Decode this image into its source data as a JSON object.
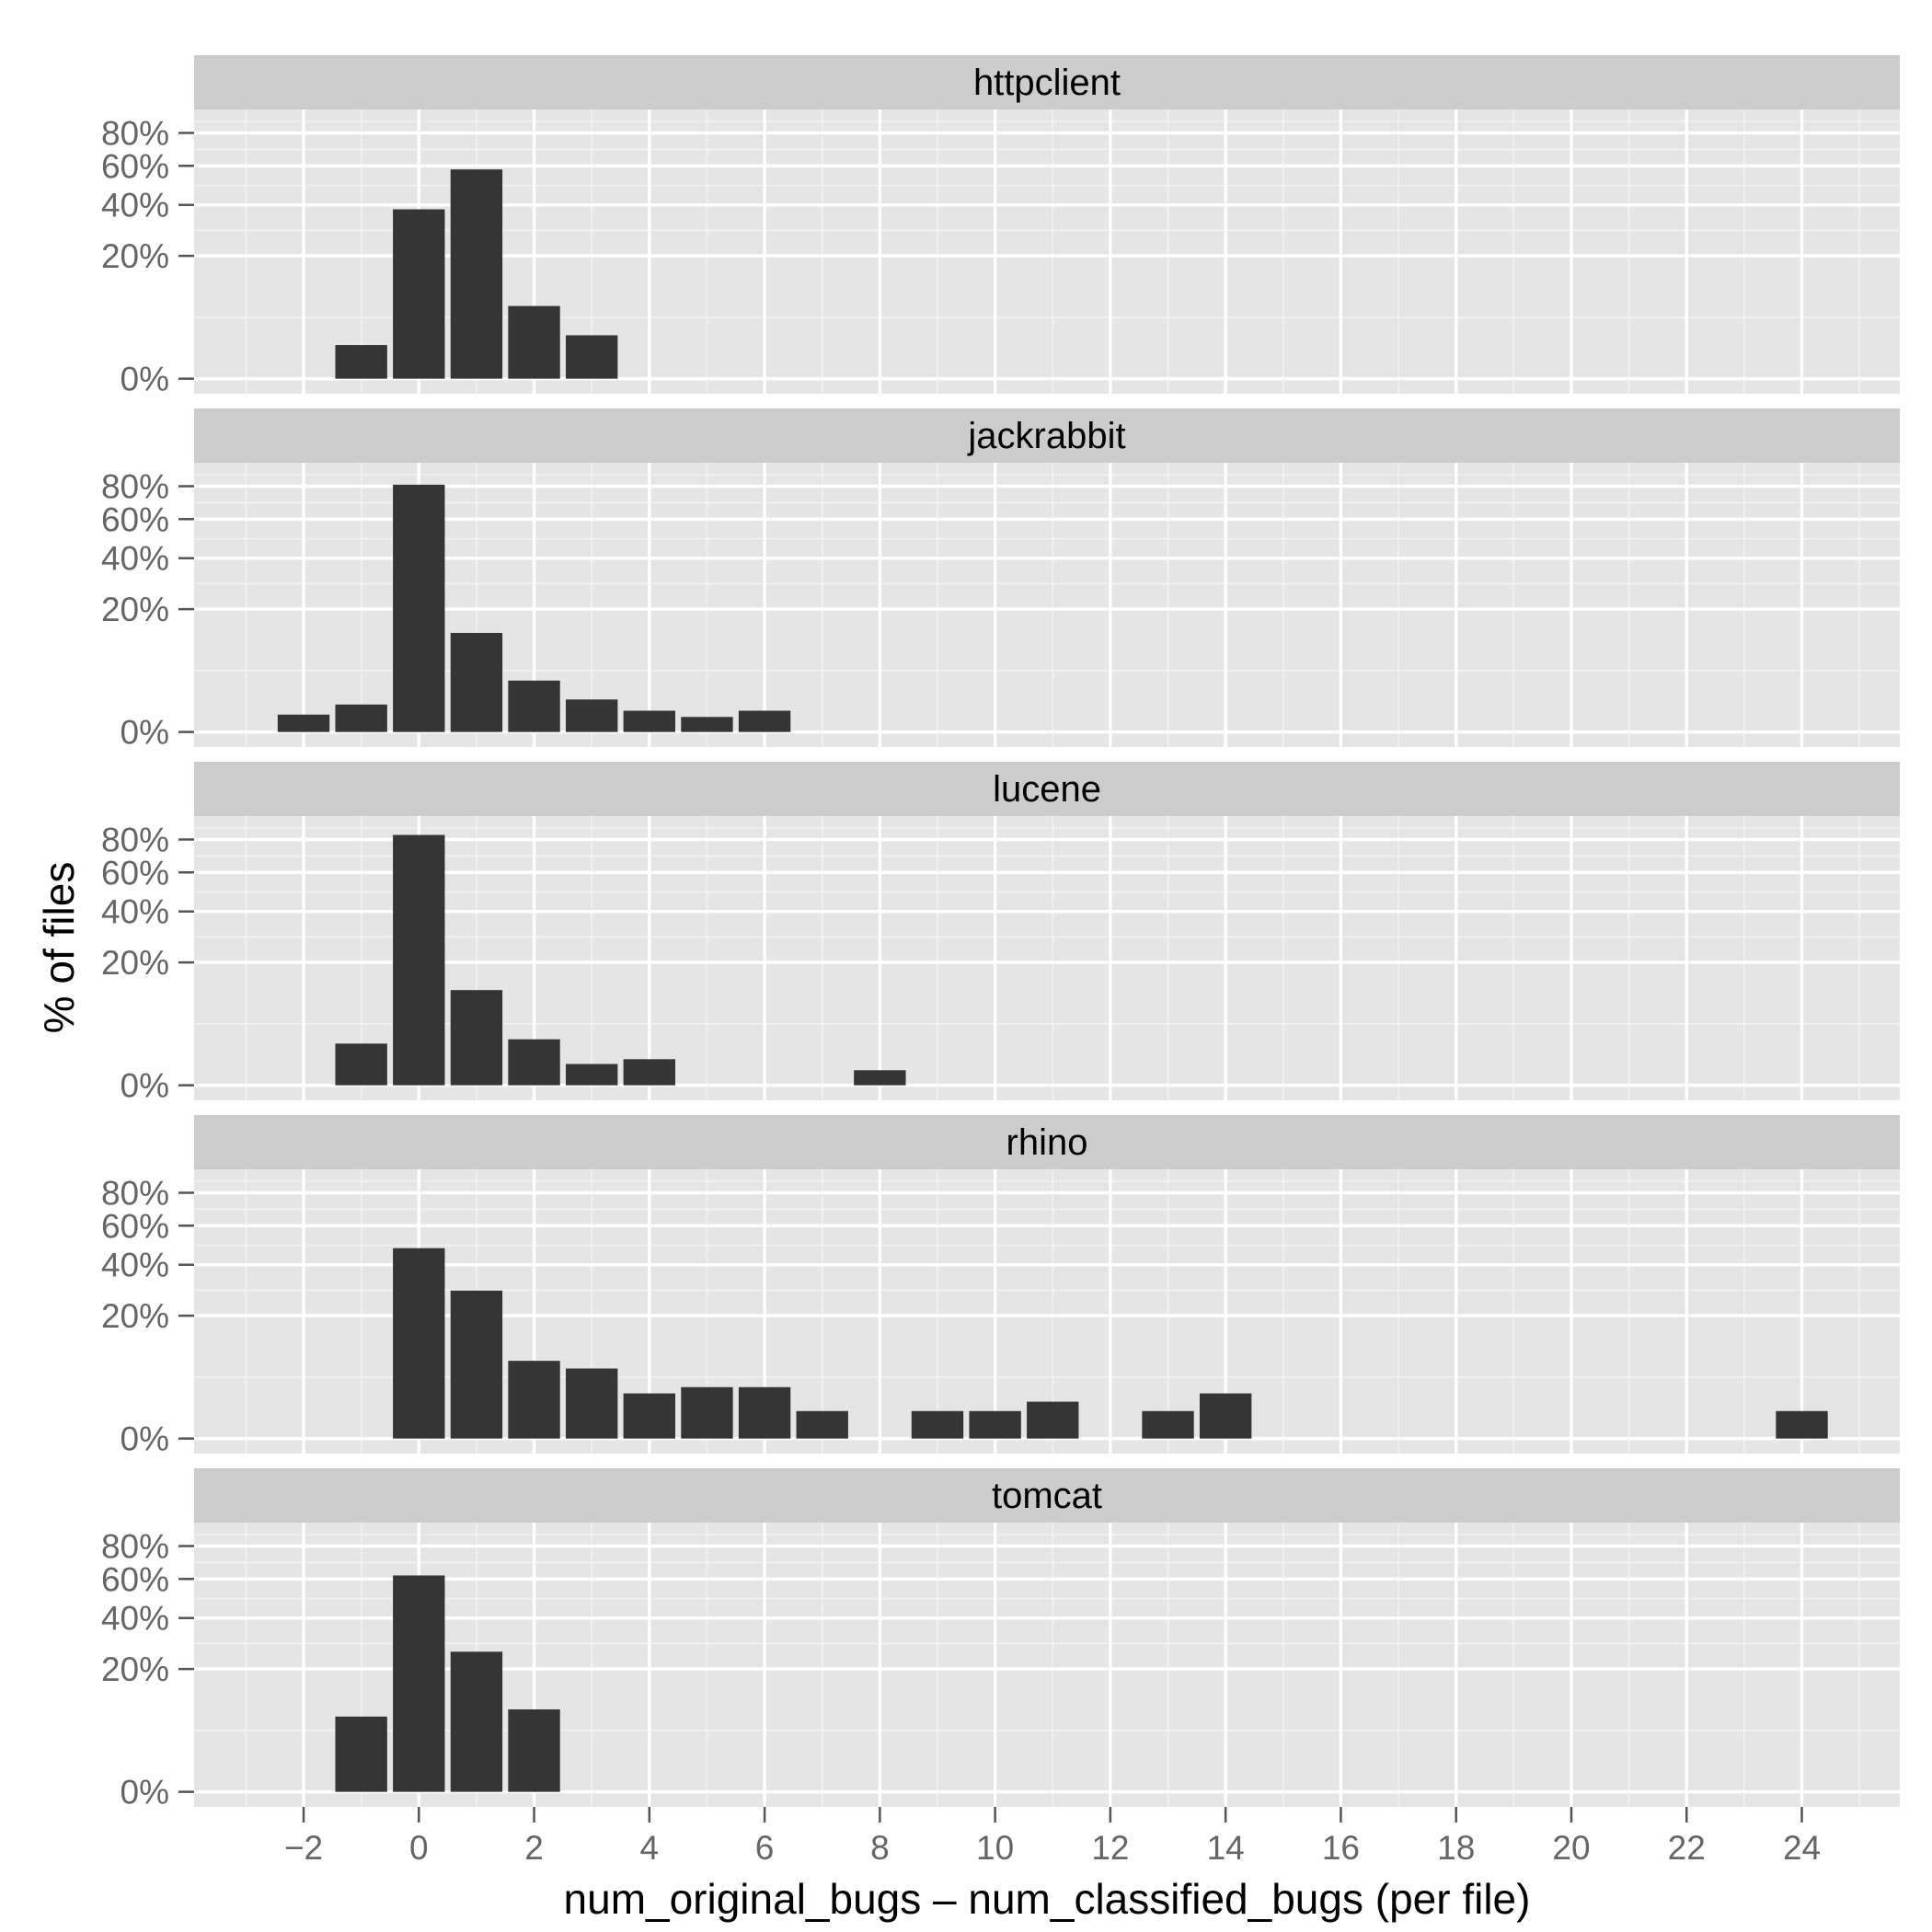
{
  "chart_data": {
    "type": "bar",
    "xlabel": "num_original_bugs – num_classified_bugs (per file)",
    "ylabel": "% of files",
    "xlim": [
      -3.9,
      25.7
    ],
    "x_ticks": [
      -2,
      0,
      2,
      4,
      6,
      8,
      10,
      12,
      14,
      16,
      18,
      20,
      22,
      24
    ],
    "x_tick_labels": [
      "−2",
      "0",
      "2",
      "4",
      "6",
      "8",
      "10",
      "12",
      "14",
      "16",
      "18",
      "20",
      "22",
      "24"
    ],
    "y_scale": "sqrt",
    "ylim": [
      -0.3,
      96
    ],
    "y_ticks": [
      0,
      20,
      40,
      60,
      80
    ],
    "y_tick_labels": [
      "0%",
      "20%",
      "40%",
      "60%",
      "80%"
    ],
    "grid": true,
    "panels": [
      {
        "name": "httpclient",
        "x": [
          -1,
          0,
          1,
          2,
          3
        ],
        "values": [
          1.5,
          38,
          58,
          7,
          2.5
        ]
      },
      {
        "name": "jackrabbit",
        "x": [
          -2,
          -1,
          0,
          1,
          2,
          3,
          4,
          5,
          6
        ],
        "values": [
          0.4,
          1.0,
          81,
          13,
          3.5,
          1.4,
          0.6,
          0.3,
          0.6
        ]
      },
      {
        "name": "lucene",
        "x": [
          -1,
          0,
          1,
          2,
          3,
          4,
          8
        ],
        "values": [
          2.3,
          83,
          12,
          2.8,
          0.6,
          0.9,
          0.3
        ]
      },
      {
        "name": "rhino",
        "x": [
          0,
          1,
          2,
          3,
          4,
          5,
          6,
          7,
          9,
          10,
          11,
          13,
          14,
          24
        ],
        "values": [
          48,
          29,
          8,
          6.5,
          2.7,
          3.5,
          3.5,
          1.0,
          1.0,
          1.0,
          1.8,
          1.0,
          2.7,
          1.0
        ]
      },
      {
        "name": "tomcat",
        "x": [
          -1,
          0,
          1,
          2
        ],
        "values": [
          7.5,
          62,
          26,
          9
        ]
      }
    ]
  }
}
